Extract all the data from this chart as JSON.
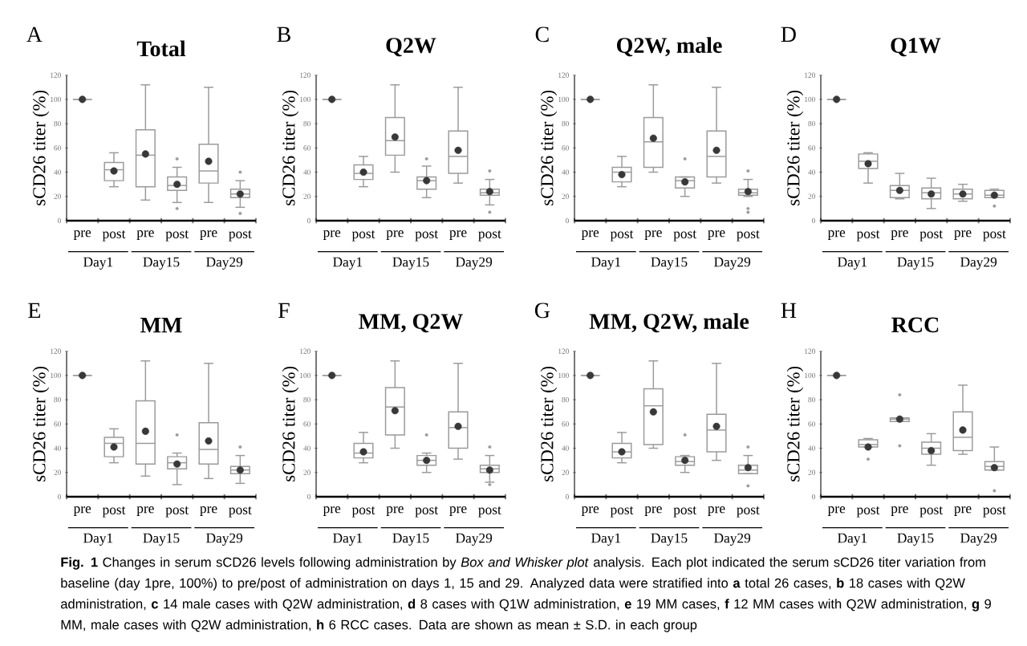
{
  "chart_data": [
    {
      "type": "box",
      "title": "Total",
      "ylabel": "sCD26 titer (%)",
      "categories": [
        "pre",
        "post",
        "pre",
        "post",
        "pre",
        "post"
      ],
      "ylim": [
        0,
        120
      ],
      "yticks": [
        0,
        20,
        40,
        60,
        80,
        100,
        120
      ],
      "series": [
        {
          "color": "#9a9a9a",
          "boxes": [
            {
              "low": 100,
              "q1": 100,
              "median": 100,
              "q3": 100,
              "high": 100,
              "mean": 100
            },
            {
              "low": 28,
              "q1": 33,
              "median": 42,
              "q3": 48,
              "high": 56,
              "mean": 41
            },
            {
              "low": 17,
              "q1": 28,
              "median": 54,
              "q3": 75,
              "high": 112,
              "mean": 55
            },
            {
              "low": 15,
              "q1": 25,
              "median": 29,
              "q3": 36,
              "high": 44,
              "mean": 30,
              "outliers": [
                51,
                10
              ]
            },
            {
              "low": 15,
              "q1": 31,
              "median": 41,
              "q3": 63,
              "high": 110,
              "mean": 49
            },
            {
              "low": 11,
              "q1": 19,
              "median": 22,
              "q3": 26,
              "high": 33,
              "mean": 22,
              "outliers": [
                40,
                6
              ]
            }
          ]
        }
      ],
      "annotations": [
        "A",
        "Day1",
        "Day15",
        "Day29",
        "**Fig. 1** Changes in serum sCD26 levels following administration by *Box and Whisker plot* analysis. Each plot indicated the serum sCD26 titer variation from baseline (day 1pre, 100%) to pre/post of administration on days 1, 15 and 29. Analyzed data were stratified into **a** total 26 cases, **b** 18 cases with Q2W administration, **c** 14 male cases with Q2W administration, **d** 8 cases with Q1W administration, **e** 19 MM cases, **f** 12 MM cases with Q2W administration, **g** 9 MM, male cases with Q2W administration, **h** 6 RCC cases. Data are shown as mean ± S.D. in each group"
      ]
    },
    {
      "type": "box",
      "title": "Q2W",
      "ylabel": "sCD26 titer (%)",
      "categories": [
        "pre",
        "post",
        "pre",
        "post",
        "pre",
        "post"
      ],
      "ylim": [
        0,
        120
      ],
      "yticks": [
        0,
        20,
        40,
        60,
        80,
        100,
        120
      ],
      "series": [
        {
          "color": "#9a9a9a",
          "boxes": [
            {
              "low": 100,
              "q1": 100,
              "median": 100,
              "q3": 100,
              "high": 100,
              "mean": 100
            },
            {
              "low": 28,
              "q1": 34,
              "median": 39,
              "q3": 46,
              "high": 53,
              "mean": 40
            },
            {
              "low": 40,
              "q1": 54,
              "median": 66,
              "q3": 85,
              "high": 112,
              "mean": 69
            },
            {
              "low": 19,
              "q1": 26,
              "median": 33,
              "q3": 36,
              "high": 45,
              "mean": 33,
              "outliers": [
                51
              ]
            },
            {
              "low": 31,
              "q1": 39,
              "median": 53,
              "q3": 74,
              "high": 110,
              "mean": 58
            },
            {
              "low": 13,
              "q1": 21,
              "median": 23,
              "q3": 26,
              "high": 34,
              "mean": 24,
              "outliers": [
                41,
                7
              ]
            }
          ]
        }
      ],
      "annotations": [
        "B",
        "Day1",
        "Day15",
        "Day29"
      ]
    },
    {
      "type": "box",
      "title": "Q2W, male",
      "ylabel": "sCD26 titer (%)",
      "categories": [
        "pre",
        "post",
        "pre",
        "post",
        "pre",
        "post"
      ],
      "ylim": [
        0,
        120
      ],
      "yticks": [
        0,
        20,
        40,
        60,
        80,
        100,
        120
      ],
      "series": [
        {
          "color": "#9a9a9a",
          "boxes": [
            {
              "low": 100,
              "q1": 100,
              "median": 100,
              "q3": 100,
              "high": 100,
              "mean": 100
            },
            {
              "low": 28,
              "q1": 32,
              "median": 40,
              "q3": 44,
              "high": 53,
              "mean": 38
            },
            {
              "low": 40,
              "q1": 44,
              "median": 65,
              "q3": 85,
              "high": 112,
              "mean": 68
            },
            {
              "low": 20,
              "q1": 27,
              "median": 33,
              "q3": 36,
              "high": 36,
              "mean": 32,
              "outliers": [
                51
              ]
            },
            {
              "low": 31,
              "q1": 36,
              "median": 53,
              "q3": 74,
              "high": 110,
              "mean": 58
            },
            {
              "low": 20,
              "q1": 21,
              "median": 23,
              "q3": 26,
              "high": 34,
              "mean": 24,
              "outliers": [
                41,
                10,
                7
              ]
            }
          ]
        }
      ],
      "annotations": [
        "C",
        "Day1",
        "Day15",
        "Day29"
      ]
    },
    {
      "type": "box",
      "title": "Q1W",
      "ylabel": "sCD26 titer (%)",
      "categories": [
        "pre",
        "post",
        "pre",
        "post",
        "pre",
        "post"
      ],
      "ylim": [
        0,
        120
      ],
      "yticks": [
        0,
        20,
        40,
        60,
        80,
        100,
        120
      ],
      "series": [
        {
          "color": "#9a9a9a",
          "boxes": [
            {
              "low": 100,
              "q1": 100,
              "median": 100,
              "q3": 100,
              "high": 100,
              "mean": 100
            },
            {
              "low": 31,
              "q1": 43,
              "median": 49,
              "q3": 55,
              "high": 56,
              "mean": 47
            },
            {
              "low": 18,
              "q1": 19,
              "median": 25,
              "q3": 29,
              "high": 39,
              "mean": 25
            },
            {
              "low": 10,
              "q1": 18,
              "median": 23,
              "q3": 27,
              "high": 35,
              "mean": 22
            },
            {
              "low": 16,
              "q1": 18,
              "median": 22,
              "q3": 26,
              "high": 30,
              "mean": 22
            },
            {
              "low": 19,
              "q1": 19,
              "median": 21,
              "q3": 25,
              "high": 26,
              "mean": 21,
              "outliers": [
                12
              ]
            }
          ]
        }
      ],
      "annotations": [
        "D",
        "Day1",
        "Day15",
        "Day29"
      ]
    },
    {
      "type": "box",
      "title": "MM",
      "ylabel": "sCD26 titer (%)",
      "categories": [
        "pre",
        "post",
        "pre",
        "post",
        "pre",
        "post"
      ],
      "ylim": [
        0,
        120
      ],
      "yticks": [
        0,
        20,
        40,
        60,
        80,
        100,
        120
      ],
      "series": [
        {
          "color": "#9a9a9a",
          "boxes": [
            {
              "low": 100,
              "q1": 100,
              "median": 100,
              "q3": 100,
              "high": 100,
              "mean": 100
            },
            {
              "low": 28,
              "q1": 33,
              "median": 44,
              "q3": 49,
              "high": 56,
              "mean": 41
            },
            {
              "low": 17,
              "q1": 27,
              "median": 44,
              "q3": 79,
              "high": 112,
              "mean": 54
            },
            {
              "low": 10,
              "q1": 23,
              "median": 28,
              "q3": 33,
              "high": 36,
              "mean": 27,
              "outliers": [
                51
              ]
            },
            {
              "low": 15,
              "q1": 27,
              "median": 39,
              "q3": 61,
              "high": 110,
              "mean": 46
            },
            {
              "low": 11,
              "q1": 19,
              "median": 22,
              "q3": 25,
              "high": 34,
              "mean": 22,
              "outliers": [
                41
              ]
            }
          ]
        }
      ],
      "annotations": [
        "E",
        "Day1",
        "Day15",
        "Day29"
      ]
    },
    {
      "type": "box",
      "title": "MM, Q2W",
      "ylabel": "sCD26 titer (%)",
      "categories": [
        "pre",
        "post",
        "pre",
        "post",
        "pre",
        "post"
      ],
      "ylim": [
        0,
        120
      ],
      "yticks": [
        0,
        20,
        40,
        60,
        80,
        100,
        120
      ],
      "series": [
        {
          "color": "#9a9a9a",
          "boxes": [
            {
              "low": 100,
              "q1": 100,
              "median": 100,
              "q3": 100,
              "high": 100,
              "mean": 100
            },
            {
              "low": 28,
              "q1": 32,
              "median": 36,
              "q3": 44,
              "high": 53,
              "mean": 37
            },
            {
              "low": 40,
              "q1": 51,
              "median": 74,
              "q3": 90,
              "high": 112,
              "mean": 71
            },
            {
              "low": 20,
              "q1": 26,
              "median": 30,
              "q3": 34,
              "high": 36,
              "mean": 30,
              "outliers": [
                51
              ]
            },
            {
              "low": 31,
              "q1": 40,
              "median": 57,
              "q3": 70,
              "high": 110,
              "mean": 58
            },
            {
              "low": 12,
              "q1": 20,
              "median": 23,
              "q3": 26,
              "high": 34,
              "mean": 22,
              "outliers": [
                41,
                10
              ]
            }
          ]
        }
      ],
      "annotations": [
        "F",
        "Day1",
        "Day15",
        "Day29"
      ]
    },
    {
      "type": "box",
      "title": "MM, Q2W, male",
      "ylabel": "sCD26 titer (%)",
      "categories": [
        "pre",
        "post",
        "pre",
        "post",
        "pre",
        "post"
      ],
      "ylim": [
        0,
        120
      ],
      "yticks": [
        0,
        20,
        40,
        60,
        80,
        100,
        120
      ],
      "series": [
        {
          "color": "#9a9a9a",
          "boxes": [
            {
              "low": 100,
              "q1": 100,
              "median": 100,
              "q3": 100,
              "high": 100,
              "mean": 100
            },
            {
              "low": 28,
              "q1": 32,
              "median": 37,
              "q3": 44,
              "high": 53,
              "mean": 37
            },
            {
              "low": 40,
              "q1": 43,
              "median": 75,
              "q3": 89,
              "high": 112,
              "mean": 70
            },
            {
              "low": 20,
              "q1": 26,
              "median": 29,
              "q3": 33,
              "high": 34,
              "mean": 30,
              "outliers": [
                51
              ]
            },
            {
              "low": 30,
              "q1": 37,
              "median": 55,
              "q3": 68,
              "high": 110,
              "mean": 58
            },
            {
              "low": 19,
              "q1": 19,
              "median": 22,
              "q3": 26,
              "high": 34,
              "mean": 24,
              "outliers": [
                41,
                9
              ]
            }
          ]
        }
      ],
      "annotations": [
        "G",
        "Day1",
        "Day15",
        "Day29"
      ]
    },
    {
      "type": "box",
      "title": "RCC",
      "ylabel": "sCD26 titer (%)",
      "categories": [
        "pre",
        "post",
        "pre",
        "post",
        "pre",
        "post"
      ],
      "ylim": [
        0,
        120
      ],
      "yticks": [
        0,
        20,
        40,
        60,
        80,
        100,
        120
      ],
      "series": [
        {
          "color": "#9a9a9a",
          "boxes": [
            {
              "low": 100,
              "q1": 100,
              "median": 100,
              "q3": 100,
              "high": 100,
              "mean": 100
            },
            {
              "low": 41,
              "q1": 41,
              "median": 43,
              "q3": 47,
              "high": 48,
              "mean": 41,
              "outliers": [
                31
              ]
            },
            {
              "low": 62,
              "q1": 62,
              "median": 64,
              "q3": 65,
              "high": 65,
              "mean": 64,
              "outliers": [
                84,
                42
              ]
            },
            {
              "low": 26,
              "q1": 35,
              "median": 40,
              "q3": 45,
              "high": 52,
              "mean": 38
            },
            {
              "low": 35,
              "q1": 38,
              "median": 49,
              "q3": 70,
              "high": 92,
              "mean": 55
            },
            {
              "low": 22,
              "q1": 22,
              "median": 25,
              "q3": 29,
              "high": 41,
              "mean": 24,
              "outliers": [
                5
              ]
            }
          ]
        }
      ],
      "annotations": [
        "H",
        "Day1",
        "Day15",
        "Day29"
      ]
    }
  ]
}
